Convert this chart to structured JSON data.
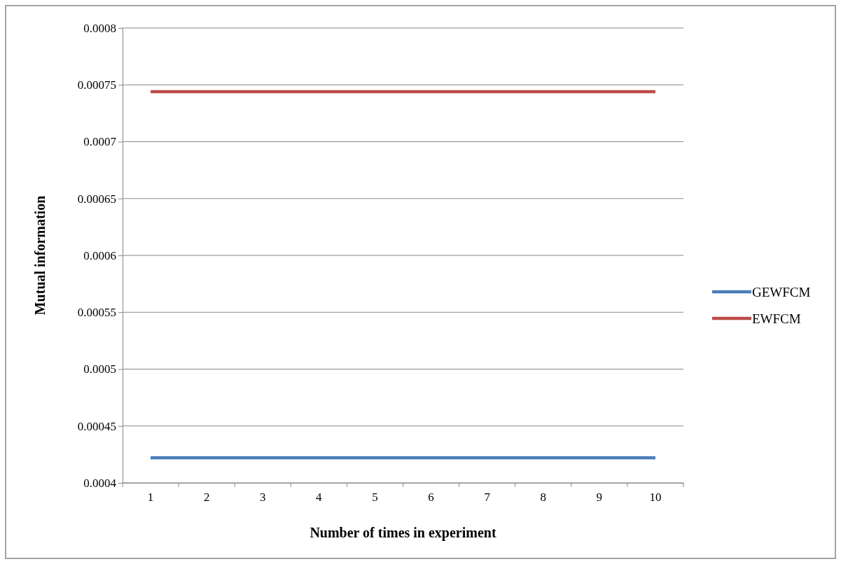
{
  "chart_data": {
    "type": "line",
    "xlabel": "Number of times in experiment",
    "ylabel": "Mutual information",
    "categories": [
      "1",
      "2",
      "3",
      "4",
      "5",
      "6",
      "7",
      "8",
      "9",
      "10"
    ],
    "series": [
      {
        "name": "GEWFCM",
        "color": "#4a7ebb",
        "values": [
          0.000422,
          0.000422,
          0.000422,
          0.000422,
          0.000422,
          0.000422,
          0.000422,
          0.000422,
          0.000422,
          0.000422
        ]
      },
      {
        "name": "EWFCM",
        "color": "#be4b48",
        "values": [
          0.000744,
          0.000744,
          0.000744,
          0.000744,
          0.000744,
          0.000744,
          0.000744,
          0.000744,
          0.000744,
          0.000744
        ]
      }
    ],
    "ylim": [
      0.0004,
      0.0008
    ],
    "yticks": [
      0.0004,
      0.00045,
      0.0005,
      0.00055,
      0.0006,
      0.00065,
      0.0007,
      0.00075,
      0.0008
    ],
    "grid": "y",
    "legend": "right",
    "marker": "none",
    "line_style": "solid"
  }
}
